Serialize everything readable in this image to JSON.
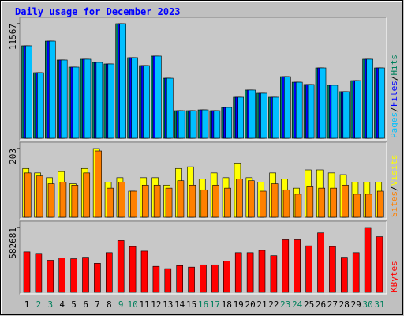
{
  "title": "Daily usage for December 2023",
  "legend_separator": "/",
  "chart_data": [
    {
      "type": "bar",
      "ylim": [
        0,
        11567
      ],
      "yticks": [
        11567
      ],
      "series": [
        {
          "name": "Hits",
          "color": "#00805c",
          "values": [
            9336,
            6620,
            9810,
            7900,
            7180,
            7980,
            7660,
            7500,
            11567,
            8140,
            7340,
            8300,
            6060,
            2790,
            2790,
            2870,
            2790,
            3110,
            4150,
            4870,
            4550,
            4150,
            6220,
            5660,
            5430,
            7100,
            5350,
            4710,
            5820,
            7980,
            7100
          ]
        },
        {
          "name": "Files",
          "color": "#0000ff",
          "values": [
            9336,
            6620,
            9810,
            7900,
            7180,
            7980,
            7660,
            7500,
            11567,
            8140,
            7340,
            8300,
            6060,
            2790,
            2790,
            2870,
            2790,
            3110,
            4150,
            4870,
            4550,
            4150,
            6220,
            5660,
            5430,
            7100,
            5350,
            4710,
            5820,
            7980,
            7100
          ]
        },
        {
          "name": "Pages",
          "color": "#00c0ff",
          "values": [
            9336,
            6620,
            9810,
            7900,
            7180,
            7980,
            7660,
            7500,
            11567,
            8140,
            7340,
            8300,
            6060,
            2790,
            2790,
            2870,
            2790,
            3110,
            4150,
            4870,
            4550,
            4150,
            6220,
            5660,
            5430,
            7100,
            5350,
            4710,
            5820,
            7980,
            7100
          ]
        }
      ]
    },
    {
      "type": "bar",
      "ylim": [
        0,
        203
      ],
      "yticks": [
        203
      ],
      "series": [
        {
          "name": "Visits",
          "color": "#ffff00",
          "values": [
            144,
            131,
            117,
            135,
            99,
            144,
            203,
            104,
            117,
            77,
            117,
            117,
            95,
            144,
            149,
            113,
            131,
            117,
            160,
            117,
            104,
            131,
            113,
            86,
            140,
            140,
            131,
            126,
            104,
            104,
            104
          ]
        },
        {
          "name": "Sites",
          "color": "#ff8000",
          "values": [
            131,
            122,
            99,
            104,
            95,
            131,
            196,
            86,
            104,
            77,
            95,
            95,
            86,
            108,
            95,
            81,
            95,
            86,
            113,
            108,
            77,
            99,
            81,
            68,
            90,
            86,
            86,
            95,
            68,
            68,
            77
          ]
        }
      ]
    },
    {
      "type": "bar",
      "ylim": [
        0,
        582681
      ],
      "yticks": [
        582681
      ],
      "series": [
        {
          "name": "KBytes",
          "color": "#ff0000",
          "values": [
            363300,
            349600,
            287900,
            308500,
            301600,
            315300,
            260500,
            356500,
            466100,
            411300,
            370200,
            233100,
            212500,
            239900,
            226200,
            246800,
            246800,
            281100,
            356500,
            356500,
            377000,
            329000,
            473000,
            473000,
            418200,
            534700,
            411300,
            315300,
            356500,
            582681,
            500400
          ]
        }
      ],
      "categories": [
        "1",
        "2",
        "3",
        "4",
        "5",
        "6",
        "7",
        "8",
        "9",
        "10",
        "11",
        "12",
        "13",
        "14",
        "15",
        "16",
        "17",
        "18",
        "19",
        "20",
        "21",
        "22",
        "23",
        "24",
        "25",
        "26",
        "27",
        "28",
        "29",
        "30",
        "31"
      ],
      "category_colors": [
        "#000000",
        "#00805c",
        "#00805c",
        "#000000",
        "#000000",
        "#000000",
        "#000000",
        "#000000",
        "#00805c",
        "#00805c",
        "#000000",
        "#000000",
        "#000000",
        "#000000",
        "#000000",
        "#00805c",
        "#00805c",
        "#000000",
        "#000000",
        "#000000",
        "#000000",
        "#000000",
        "#00805c",
        "#00805c",
        "#000000",
        "#000000",
        "#000000",
        "#000000",
        "#000000",
        "#00805c",
        "#00805c"
      ]
    }
  ]
}
